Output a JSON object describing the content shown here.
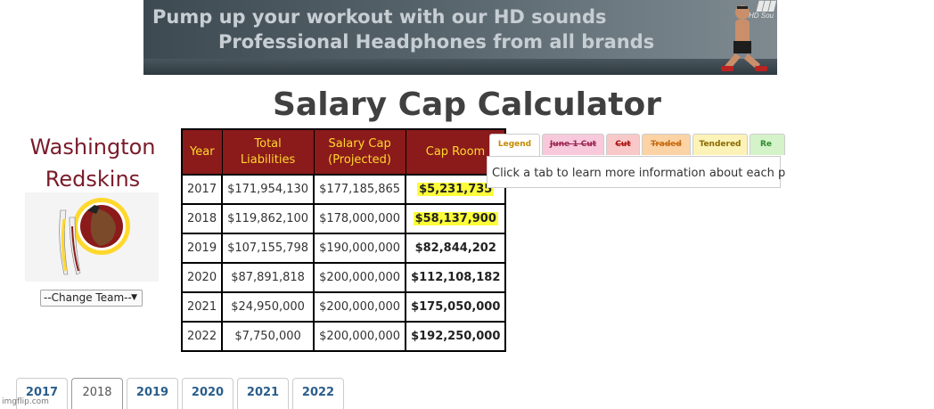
{
  "banner": {
    "line1": "Pump up your workout with our HD sounds",
    "line2": "Professional Headphones from all brands",
    "brand": "HD Sou"
  },
  "page_title": "Salary Cap Calculator",
  "team": {
    "name_line1": "Washington",
    "name_line2": "Redskins",
    "select_label": "--Change Team--"
  },
  "cap_table": {
    "headers": [
      "Year",
      "Total Liabilities",
      "Salary Cap (Projected)",
      "Cap Room"
    ],
    "rows": [
      {
        "year": "2017",
        "liabilities": "$171,954,130",
        "cap": "$177,185,865",
        "room": "$5,231,735",
        "highlight": true
      },
      {
        "year": "2018",
        "liabilities": "$119,862,100",
        "cap": "$178,000,000",
        "room": "$58,137,900",
        "highlight": true
      },
      {
        "year": "2019",
        "liabilities": "$107,155,798",
        "cap": "$190,000,000",
        "room": "$82,844,202",
        "highlight": false
      },
      {
        "year": "2020",
        "liabilities": "$87,891,818",
        "cap": "$200,000,000",
        "room": "$112,108,182",
        "highlight": false
      },
      {
        "year": "2021",
        "liabilities": "$24,950,000",
        "cap": "$200,000,000",
        "room": "$175,050,000",
        "highlight": false
      },
      {
        "year": "2022",
        "liabilities": "$7,750,000",
        "cap": "$200,000,000",
        "room": "$192,250,000",
        "highlight": false
      }
    ]
  },
  "legend": {
    "tabs": [
      "Legend",
      "June 1 Cut",
      "Cut",
      "Traded",
      "Tendered",
      "Re"
    ],
    "message": "Click a tab to learn more information about each p"
  },
  "year_tabs": {
    "items": [
      "2017",
      "2018",
      "2019",
      "2020",
      "2021",
      "2022"
    ],
    "active": "2018"
  },
  "watermark": "imgflip.com",
  "colors": {
    "header_bg": "#8b1a1a",
    "header_text": "#ffd82d",
    "team_name": "#7a1c2a",
    "highlight": "#fdfd3a",
    "tab_link": "#2a5e8c"
  }
}
